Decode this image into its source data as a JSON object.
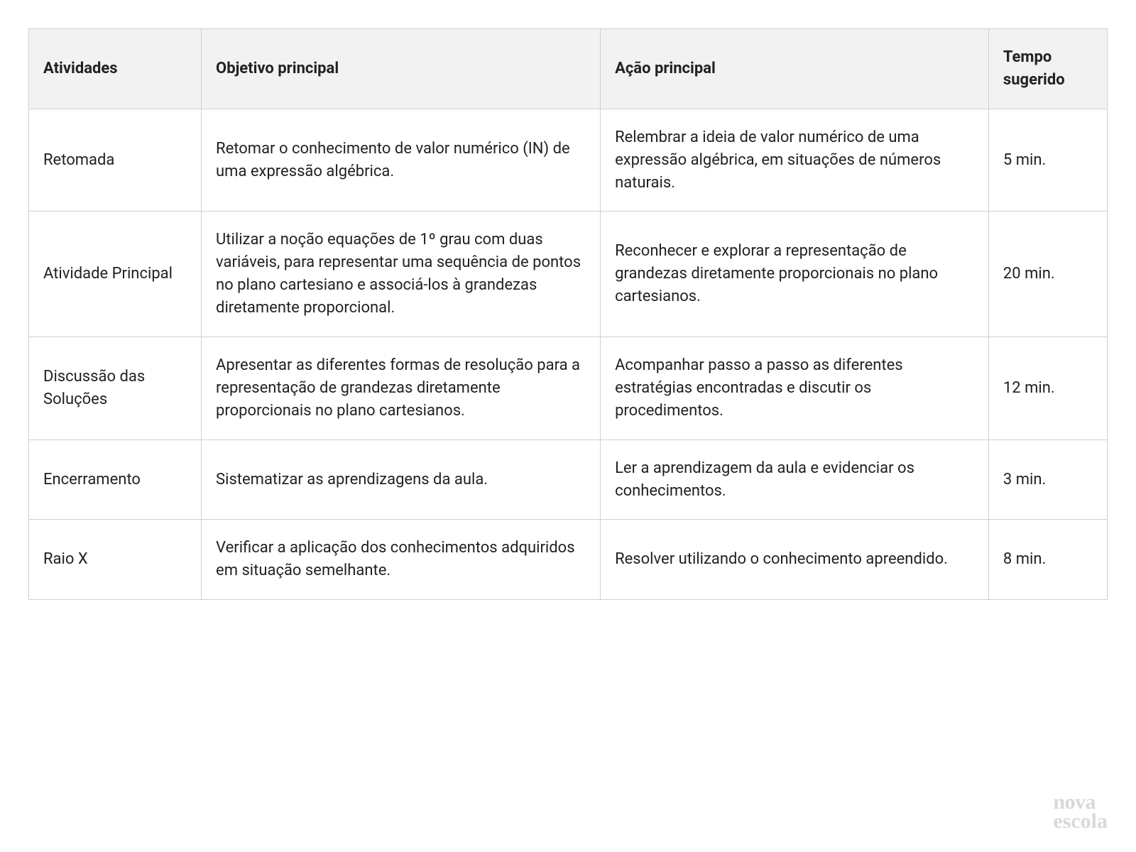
{
  "table": {
    "columns": [
      "Atividades",
      "Objetivo principal",
      "Ação principal",
      "Tempo sugerido"
    ],
    "column_widths_pct": [
      16,
      37,
      36,
      11
    ],
    "header_bg": "#f2f2f2",
    "cell_bg": "#ffffff",
    "border_color": "#d0d0d0",
    "font_size_pt": 16,
    "rows": [
      {
        "atividade": "Retomada",
        "objetivo": "Retomar o conhecimento de valor numérico (IN)  de uma expressão algébrica.",
        "acao": "Relembrar a ideia de valor numérico de uma expressão algébrica, em situações de números naturais.",
        "tempo": "5 min."
      },
      {
        "atividade": "Atividade Principal",
        "objetivo": "Utilizar a noção equações de 1º grau com duas variáveis, para representar uma sequência de pontos no plano cartesiano e associá-los à grandezas diretamente proporcional.",
        "acao": "Reconhecer e explorar a representação de grandezas diretamente proporcionais no plano cartesianos.",
        "tempo": "20 min."
      },
      {
        "atividade": "Discussão das Soluções",
        "objetivo": "Apresentar as diferentes formas de resolução para a representação de grandezas diretamente proporcionais no plano cartesianos.",
        "acao": "Acompanhar passo a passo as diferentes estratégias encontradas e discutir os procedimentos.",
        "tempo": "12 min."
      },
      {
        "atividade": "Encerramento",
        "objetivo": "Sistematizar as aprendizagens da aula.",
        "acao": "Ler a aprendizagem da aula e evidenciar os conhecimentos.",
        "tempo": "3 min."
      },
      {
        "atividade": "Raio X",
        "objetivo": "Verificar a aplicação dos conhecimentos adquiridos em situação semelhante.",
        "acao": "Resolver utilizando o conhecimento apreendido.",
        "tempo": "8 min."
      }
    ]
  },
  "logo": {
    "line1": "nova",
    "line2": "escola",
    "color": "#d9d9d9"
  }
}
